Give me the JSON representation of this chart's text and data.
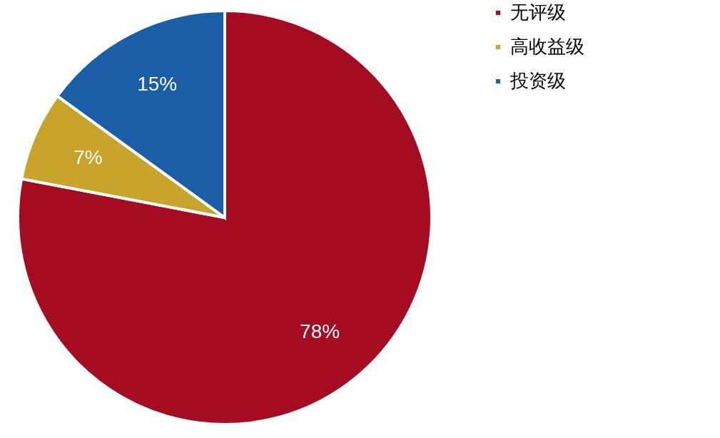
{
  "chart_data": {
    "type": "pie",
    "categories": [
      "无评级",
      "高收益级",
      "投资级"
    ],
    "values": [
      78,
      7,
      15
    ],
    "colors": [
      "#a50c22",
      "#c8a42a",
      "#1a5ea8"
    ],
    "value_labels": [
      "78%",
      "7%",
      "15%"
    ],
    "legend": "right"
  }
}
